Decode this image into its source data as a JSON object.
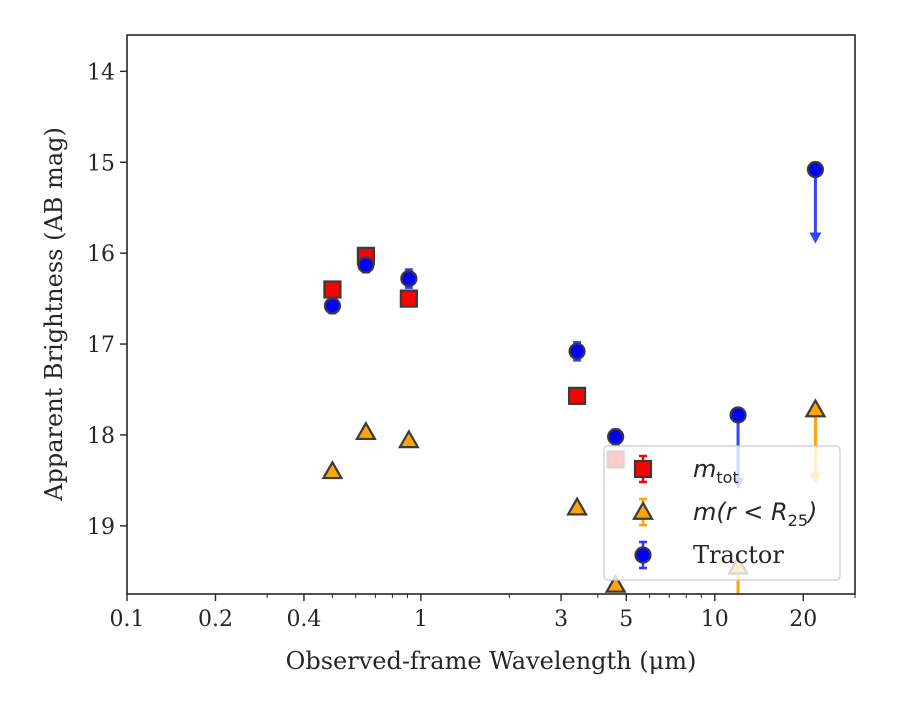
{
  "chart_data": {
    "type": "scatter",
    "xlabel": "Observed-frame Wavelength (μm)",
    "ylabel": "Apparent Brightness (AB mag)",
    "x_scale": "log",
    "xlim": [
      0.1,
      30
    ],
    "ylim": [
      19.75,
      13.6
    ],
    "y_inverted": true,
    "x_ticks": [
      0.1,
      0.2,
      0.4,
      1,
      3,
      5,
      10,
      20
    ],
    "x_tick_labels": [
      "0.1",
      "0.2",
      "0.4",
      "1",
      "3",
      "5",
      "10",
      "20"
    ],
    "y_ticks": [
      14,
      15,
      16,
      17,
      18,
      19
    ],
    "y_tick_labels": [
      "14",
      "15",
      "16",
      "17",
      "18",
      "19"
    ],
    "grid": false,
    "legend_position": "lower-right",
    "legend": [
      {
        "label_main": "m",
        "label_sub": "tot",
        "label_plain": "",
        "marker": "square",
        "color": "#ff0000",
        "errcolor": "#ff0000"
      },
      {
        "label_main": "m(r < R",
        "label_sub": "25",
        "label_plain": ")",
        "marker": "triangle",
        "color": "#ffa500",
        "errcolor": "#ffa500"
      },
      {
        "label_main": "",
        "label_sub": "",
        "label_plain": "Tractor",
        "marker": "circle",
        "color": "#0000ff",
        "errcolor": "#3333ff"
      }
    ],
    "series": [
      {
        "name": "m_tot",
        "marker": "square",
        "color": "#ff0000",
        "points": [
          {
            "x": 0.5,
            "y": 16.4,
            "yerr": 0.06
          },
          {
            "x": 0.65,
            "y": 16.03,
            "yerr": 0.06
          },
          {
            "x": 0.91,
            "y": 16.5,
            "yerr": 0.06
          },
          {
            "x": 3.4,
            "y": 17.57,
            "yerr": 0.06
          },
          {
            "x": 4.6,
            "y": 18.27,
            "yerr": 0.06
          }
        ]
      },
      {
        "name": "m(r < R25)",
        "marker": "triangle",
        "color": "#ffa500",
        "points": [
          {
            "x": 0.5,
            "y": 18.4
          },
          {
            "x": 0.65,
            "y": 17.97
          },
          {
            "x": 0.91,
            "y": 18.06
          },
          {
            "x": 3.4,
            "y": 18.8
          },
          {
            "x": 4.6,
            "y": 19.65
          },
          {
            "x": 12.0,
            "y": 19.45,
            "upper_limit": true
          },
          {
            "x": 22.0,
            "y": 17.72,
            "upper_limit": true
          }
        ]
      },
      {
        "name": "Tractor",
        "marker": "circle",
        "color": "#0000ff",
        "points": [
          {
            "x": 0.5,
            "y": 16.58,
            "yerr": 0.08
          },
          {
            "x": 0.65,
            "y": 16.13,
            "yerr": 0.08
          },
          {
            "x": 0.91,
            "y": 16.28,
            "yerr": 0.1
          },
          {
            "x": 3.4,
            "y": 17.08,
            "yerr": 0.1
          },
          {
            "x": 4.6,
            "y": 18.02,
            "yerr": 0.08
          },
          {
            "x": 12.0,
            "y": 17.78,
            "upper_limit": true
          },
          {
            "x": 22.0,
            "y": 15.08,
            "upper_limit": true
          }
        ]
      }
    ]
  }
}
